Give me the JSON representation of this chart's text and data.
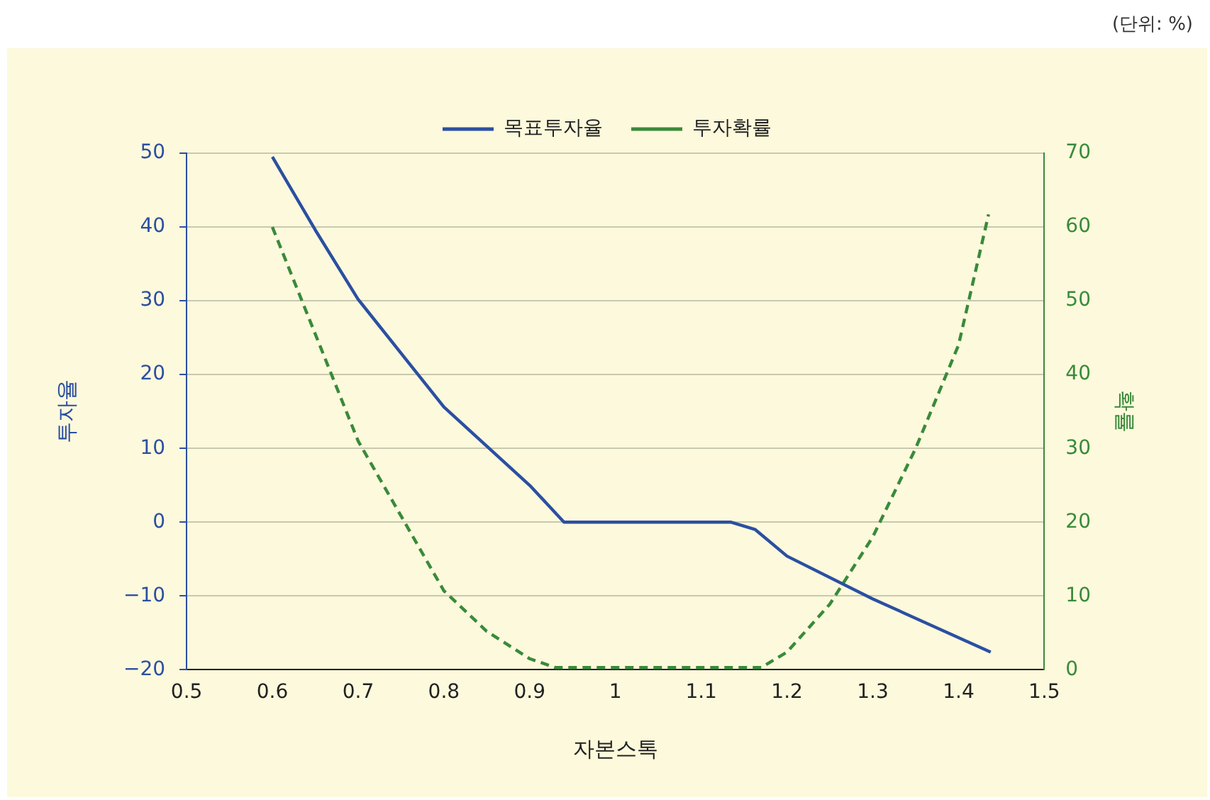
{
  "chart_data": {
    "type": "line",
    "xlabel": "자본스톡",
    "ylabel": "투자율",
    "y2label": "확률",
    "annotations": [
      "(단위: %)"
    ],
    "xlim": [
      0.5,
      1.5
    ],
    "xticks": [
      0.5,
      0.6,
      0.7,
      0.8,
      0.9,
      1,
      1.1,
      1.2,
      1.3,
      1.4,
      1.5
    ],
    "ylim": [
      -20,
      50
    ],
    "yticks": [
      -20,
      -10,
      0,
      10,
      20,
      30,
      40,
      50
    ],
    "y2lim": [
      0,
      70
    ],
    "y2ticks": [
      0,
      10,
      20,
      30,
      40,
      50,
      60,
      70
    ],
    "grid": "y",
    "legend": "top",
    "marker": "none",
    "series": [
      {
        "name": "목표투자율",
        "color": "#2b4fa2",
        "line_style": "solid",
        "x": [
          0.6,
          0.65,
          0.7,
          0.8,
          0.9,
          0.94,
          1.135,
          1.163,
          1.2,
          1.3,
          1.4375
        ],
        "values": [
          49.5,
          39.6,
          30.2,
          15.6,
          5,
          0,
          0,
          -1,
          -4.6,
          -10.4,
          -17.6
        ]
      },
      {
        "name": "투자확률",
        "color": "#3a8a3a",
        "line_style": "dashed",
        "axis": "y2",
        "x": [
          0.6,
          0.7,
          0.8,
          0.85,
          0.9,
          0.93,
          1,
          1.1,
          1.17,
          1.2,
          1.25,
          1.3,
          1.35,
          1.4,
          1.435
        ],
        "values": [
          60,
          31,
          10.7,
          5.2,
          1.5,
          0.3,
          0.3,
          0.3,
          0.3,
          2.4,
          8.9,
          18,
          30,
          44,
          61.7
        ]
      }
    ]
  }
}
